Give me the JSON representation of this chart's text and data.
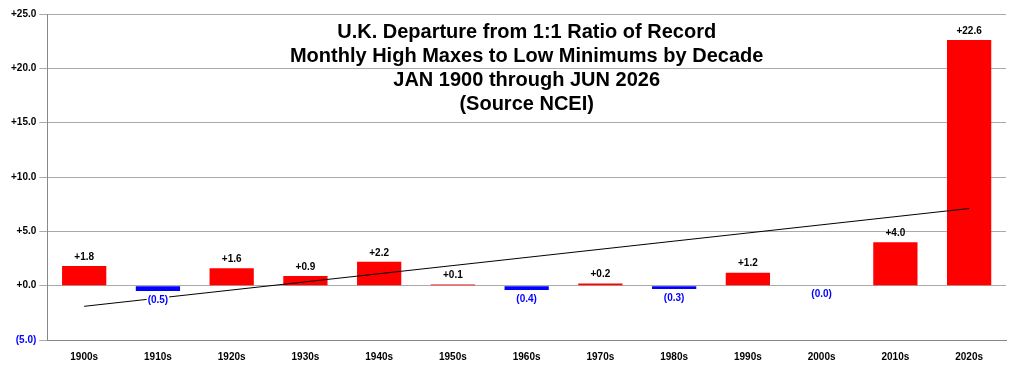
{
  "chart_data": {
    "type": "bar",
    "title": "U.K. Departure from 1:1 Ratio of Record\nMonthly High Maxes to Low Minimums by Decade\nJAN 1900 through JUN 2026\n(Source NCEI)",
    "categories": [
      "1900s",
      "1910s",
      "1920s",
      "1930s",
      "1940s",
      "1950s",
      "1960s",
      "1970s",
      "1980s",
      "1990s",
      "2000s",
      "2010s",
      "2020s"
    ],
    "series": [
      {
        "values": [
          1.8,
          -0.5,
          1.6,
          0.9,
          2.2,
          0.1,
          -0.4,
          0.2,
          -0.3,
          1.2,
          0,
          4.0,
          22.6
        ],
        "colors": [
          "#ff0000",
          "#0000ff",
          "#ff0000",
          "#ff0000",
          "#ff0000",
          "#ff0000",
          "#0000ff",
          "#ff0000",
          "#0000ff",
          "#ff0000",
          "#0000ff",
          "#ff0000",
          "#ff0000"
        ],
        "value_labels": [
          "+1.8",
          "(0.5)",
          "+1.6",
          "+0.9",
          "+2.2",
          "+0.1",
          "(0.4)",
          "+0.2",
          "(0.3)",
          "+1.2",
          "(0.0)",
          "+4.0",
          "+22.6"
        ]
      },
      {
        "type": "line",
        "color": "#000000",
        "values": [
          -1.9,
          null,
          null,
          null,
          null,
          null,
          null,
          null,
          null,
          null,
          null,
          null,
          7.1
        ]
      }
    ],
    "ylim": [
      -5,
      25
    ],
    "yticks": [
      {
        "value": -5,
        "label": "(5.0)"
      },
      {
        "value": 0,
        "label": "+0.0"
      },
      {
        "value": 5,
        "label": "+5.0"
      },
      {
        "value": 10,
        "label": "+10.0"
      },
      {
        "value": 15,
        "label": "+15.0"
      },
      {
        "value": 20,
        "label": "+20.0"
      },
      {
        "value": 25,
        "label": "+25.0"
      }
    ],
    "grid": "y",
    "legend": false
  }
}
